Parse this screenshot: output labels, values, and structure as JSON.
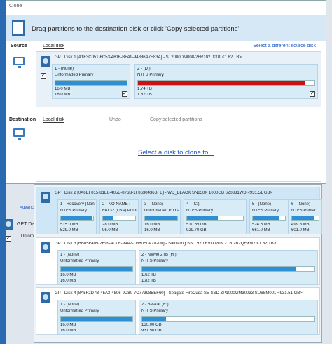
{
  "window": {
    "title": "Clone",
    "instruction": "Drag partitions to the destination disk or click 'Copy selected partitions'"
  },
  "source": {
    "label": "Source",
    "tab": "Local disk",
    "link": "Select a different source disk",
    "disk": {
      "header": "GPT Disk 1 [A1F3C051-6C53-4616-BFA9-94886A7E83A] - ST2000DM008-2FR102 0001  <1.82 TB>",
      "partitions": [
        {
          "name": "1 - (None)",
          "type": "Unformatted Primary",
          "used": "16.0 MB",
          "total": "16.0 MB"
        },
        {
          "name": "2 - (D:)",
          "type": "NTFS Primary",
          "used": "1.74 TB",
          "total": "1.82 TB"
        }
      ]
    }
  },
  "destination": {
    "label": "Destination",
    "tab": "Local disk",
    "undo": "Undo",
    "copy": "Copy selected partitions",
    "prompt": "Select a disk to clone to..."
  },
  "disk_list": [
    {
      "header": "GPT Disk 2 [0A6EF815-81E8-405E-876B-1F8630436BFE] - WD_BLACK SN850X 1000GB 620331WD  <931.51 GB>",
      "partitions": [
        {
          "name": "1 - Recovery (Non",
          "type": "NTFS Primary",
          "used": "515.0 MB",
          "total": "529.0 MB"
        },
        {
          "name": "2 - NO NAME (",
          "type": "FAT32 (LBA) Primary",
          "used": "28.0 MB",
          "total": "96.0 MB"
        },
        {
          "name": "3 - (None)",
          "type": "Unformatted Primar",
          "used": "16.0 MB",
          "total": "16.0 MB"
        },
        {
          "name": "4 - (C:)",
          "type": "NTFS Primary",
          "used": "510.65 GB",
          "total": "929.70 GB"
        },
        {
          "name": "5 - (None)",
          "type": "NTFS Primary",
          "used": "524.6 MB",
          "total": "661.0 MB"
        },
        {
          "name": "6 - (None)",
          "type": "NTFS Primar",
          "used": "499.8 MB",
          "total": "601.0 MB"
        }
      ]
    },
    {
      "header": "GPT Disk 3 [BB05F405-2F99-4C0F-94A2-D360E0A70200] - Samsung SSD 970 EVO Plus 2TB 2B2QEXM7  <1.82 TB>",
      "partitions": [
        {
          "name": "1 - (None)",
          "type": "Unformatted Primary",
          "used": "16.0 MB",
          "total": "16.0 MB"
        },
        {
          "name": "2 - NVMe 2TB (H:)",
          "type": "NTFS Primary",
          "used": "1.62 TB",
          "total": "1.82 TB"
        }
      ]
    },
    {
      "header": "GPT Disk 4 [8A5F2D7B-45A3-4806-9D80-7C77398BEF60] - Seagate FireCuda SE SSD ZP1000GM30033 SU6SM001  <931.51 GB>",
      "partitions": [
        {
          "name": "1 - (None)",
          "type": "Unformatted Primary",
          "used": "16.0 MB",
          "total": "16.0 MB"
        },
        {
          "name": "2 - Beskar (E:)",
          "type": "NTFS Primary",
          "used": "130.00 GB",
          "total": "931.50 GB"
        }
      ]
    }
  ],
  "background": {
    "disk": "GPT Disk",
    "advanced": "Advanc",
    "unformatted": "Unforn"
  }
}
